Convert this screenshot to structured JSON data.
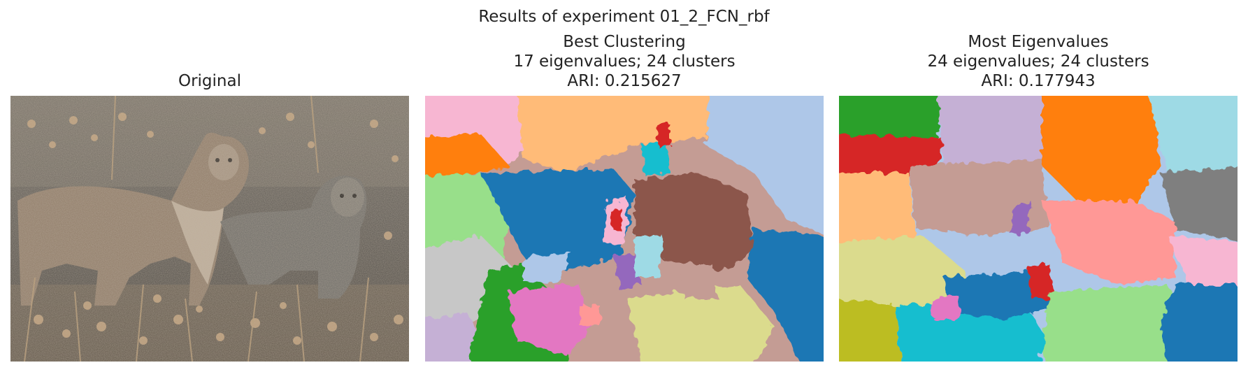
{
  "figure": {
    "suptitle": "Results of experiment 01_2_FCN_rbf"
  },
  "panels": [
    {
      "id": "original",
      "title_lines": [
        "Original"
      ]
    },
    {
      "id": "best",
      "title_lines": [
        "Best Clustering",
        "17 eigenvalues; 24 clusters",
        "ARI: 0.215627"
      ]
    },
    {
      "id": "most",
      "title_lines": [
        "Most Eigenvalues",
        "24 eigenvalues; 24 clusters",
        "ARI: 0.177943"
      ]
    }
  ],
  "colors": {
    "tab_blue": "#1f77b4",
    "tab_lightblue": "#aec7e8",
    "tab_orange": "#ff7f0e",
    "tab_peach": "#ffbb78",
    "tab_green": "#2ca02c",
    "tab_lightgreen": "#98df8a",
    "tab_red": "#d62728",
    "tab_pink": "#ff9896",
    "tab_purple": "#9467bd",
    "tab_lavender": "#c5b0d5",
    "tab_brown": "#8c564b",
    "tab_tan": "#c49c94",
    "tab_magenta": "#e377c2",
    "tab_rose": "#f7b6d2",
    "tab_gray": "#7f7f7f",
    "tab_silver": "#c7c7c7",
    "tab_olive": "#bcbd22",
    "tab_khaki": "#dbdb8d",
    "tab_cyan": "#17becf",
    "tab_skyblue": "#9edae5"
  }
}
